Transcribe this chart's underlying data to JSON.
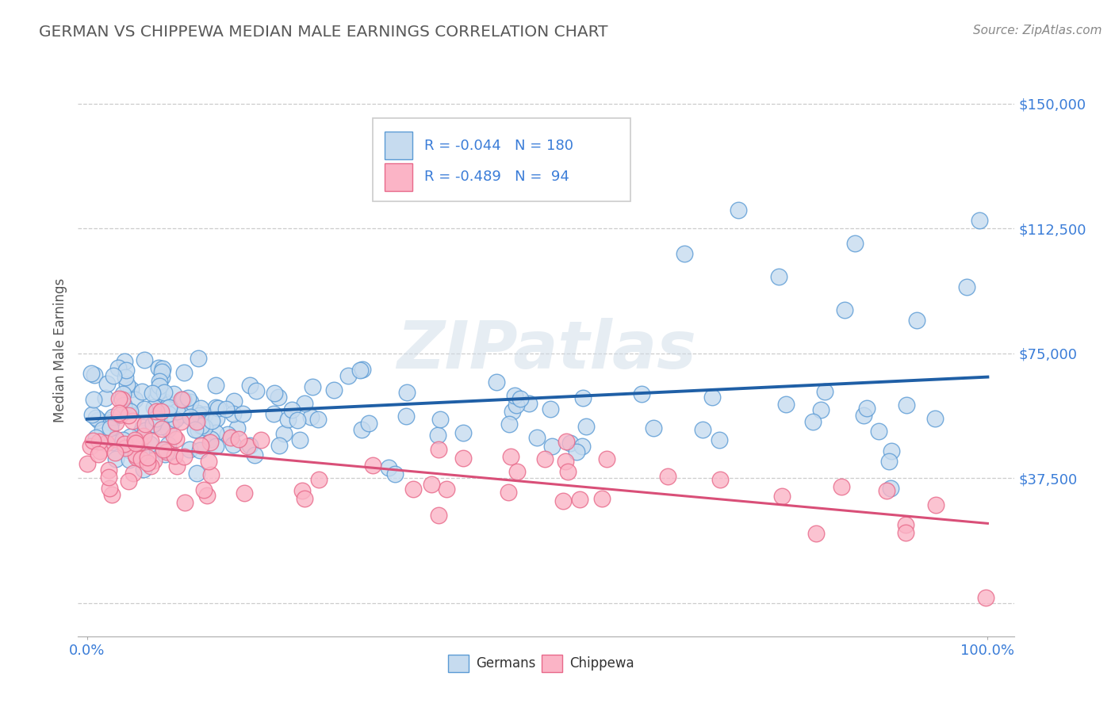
{
  "title": "GERMAN VS CHIPPEWA MEDIAN MALE EARNINGS CORRELATION CHART",
  "source": "Source: ZipAtlas.com",
  "ylabel": "Median Male Earnings",
  "ytick_vals": [
    0,
    37500,
    75000,
    112500,
    150000
  ],
  "ytick_labels": [
    "",
    "$37,500",
    "$75,000",
    "$112,500",
    "$150,000"
  ],
  "ymin": -10000,
  "ymax": 162000,
  "xmin": -0.01,
  "xmax": 1.03,
  "german_fill": "#c6dbef",
  "german_edge": "#5b9bd5",
  "chippewa_fill": "#fbb4c6",
  "chippewa_edge": "#e8698a",
  "trendline_german_color": "#1f5fa6",
  "trendline_chippewa_color": "#d94f78",
  "legend_german_R": "-0.044",
  "legend_german_N": "180",
  "legend_chippewa_R": "-0.489",
  "legend_chippewa_N": "94",
  "watermark_text": "ZIPatlas",
  "background_color": "#ffffff",
  "grid_color": "#cccccc",
  "title_color": "#595959",
  "axis_label_color": "#3b7dd8",
  "legend_text_color": "#3b7dd8",
  "source_color": "#888888"
}
